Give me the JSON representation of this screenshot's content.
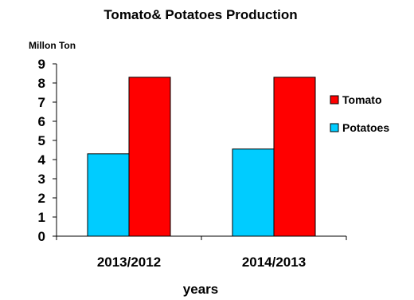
{
  "chart_data": {
    "type": "bar",
    "title": "Tomato& Potatoes Production",
    "ylabel": "Millon Ton",
    "xlabel": "years",
    "categories": [
      "2013/2012",
      "2014/2013"
    ],
    "series": [
      {
        "name": "Potatoes",
        "values": [
          4.3,
          4.55
        ],
        "color": "#00ccff"
      },
      {
        "name": "Tomato",
        "values": [
          8.3,
          8.3
        ],
        "color": "#ff0000"
      }
    ],
    "ylim": [
      0,
      9
    ],
    "yticks": [
      "0",
      "1",
      "2",
      "3",
      "4",
      "5",
      "6",
      "7",
      "8",
      "9"
    ],
    "legend": {
      "placement": "right",
      "order": [
        "Tomato",
        "Potatoes"
      ]
    },
    "grid": false
  }
}
